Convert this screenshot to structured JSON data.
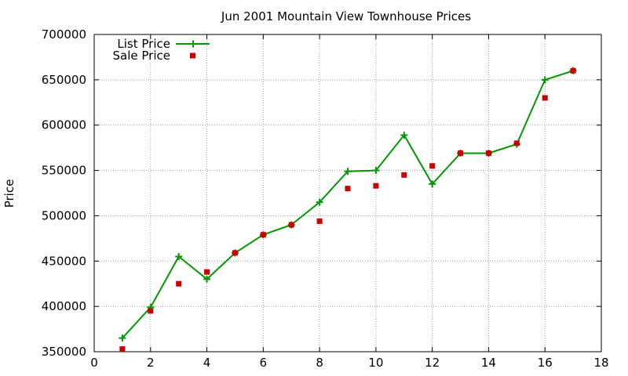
{
  "chart_data": {
    "type": "line",
    "title": "Jun 2001 Mountain View Townhouse Prices",
    "xlabel": "",
    "ylabel": "Price",
    "xlim": [
      0,
      18
    ],
    "ylim": [
      350000,
      700000
    ],
    "xticks": [
      0,
      2,
      4,
      6,
      8,
      10,
      12,
      14,
      16,
      18
    ],
    "yticks": [
      350000,
      400000,
      450000,
      500000,
      550000,
      600000,
      650000,
      700000
    ],
    "grid": true,
    "legend_position": "top-left",
    "series": [
      {
        "name": "List Price",
        "style": "line-with-plus-markers",
        "color": "#009900",
        "x": [
          1,
          2,
          3,
          4,
          5,
          6,
          7,
          8,
          9,
          10,
          11,
          12,
          13,
          14,
          15,
          16,
          17
        ],
        "y": [
          365000,
          399000,
          455000,
          430000,
          459000,
          479000,
          490000,
          515000,
          549000,
          550000,
          589000,
          535000,
          569000,
          569000,
          579000,
          650000,
          660000
        ]
      },
      {
        "name": "Sale Price",
        "style": "square-markers",
        "color": "#cc0000",
        "x": [
          1,
          2,
          3,
          4,
          5,
          6,
          7,
          8,
          9,
          10,
          11,
          12,
          13,
          14,
          15,
          16,
          17
        ],
        "y": [
          353000,
          395000,
          425000,
          438000,
          459000,
          479000,
          490000,
          494000,
          530000,
          533000,
          545000,
          555000,
          569000,
          569000,
          580000,
          630000,
          660000
        ]
      }
    ]
  }
}
